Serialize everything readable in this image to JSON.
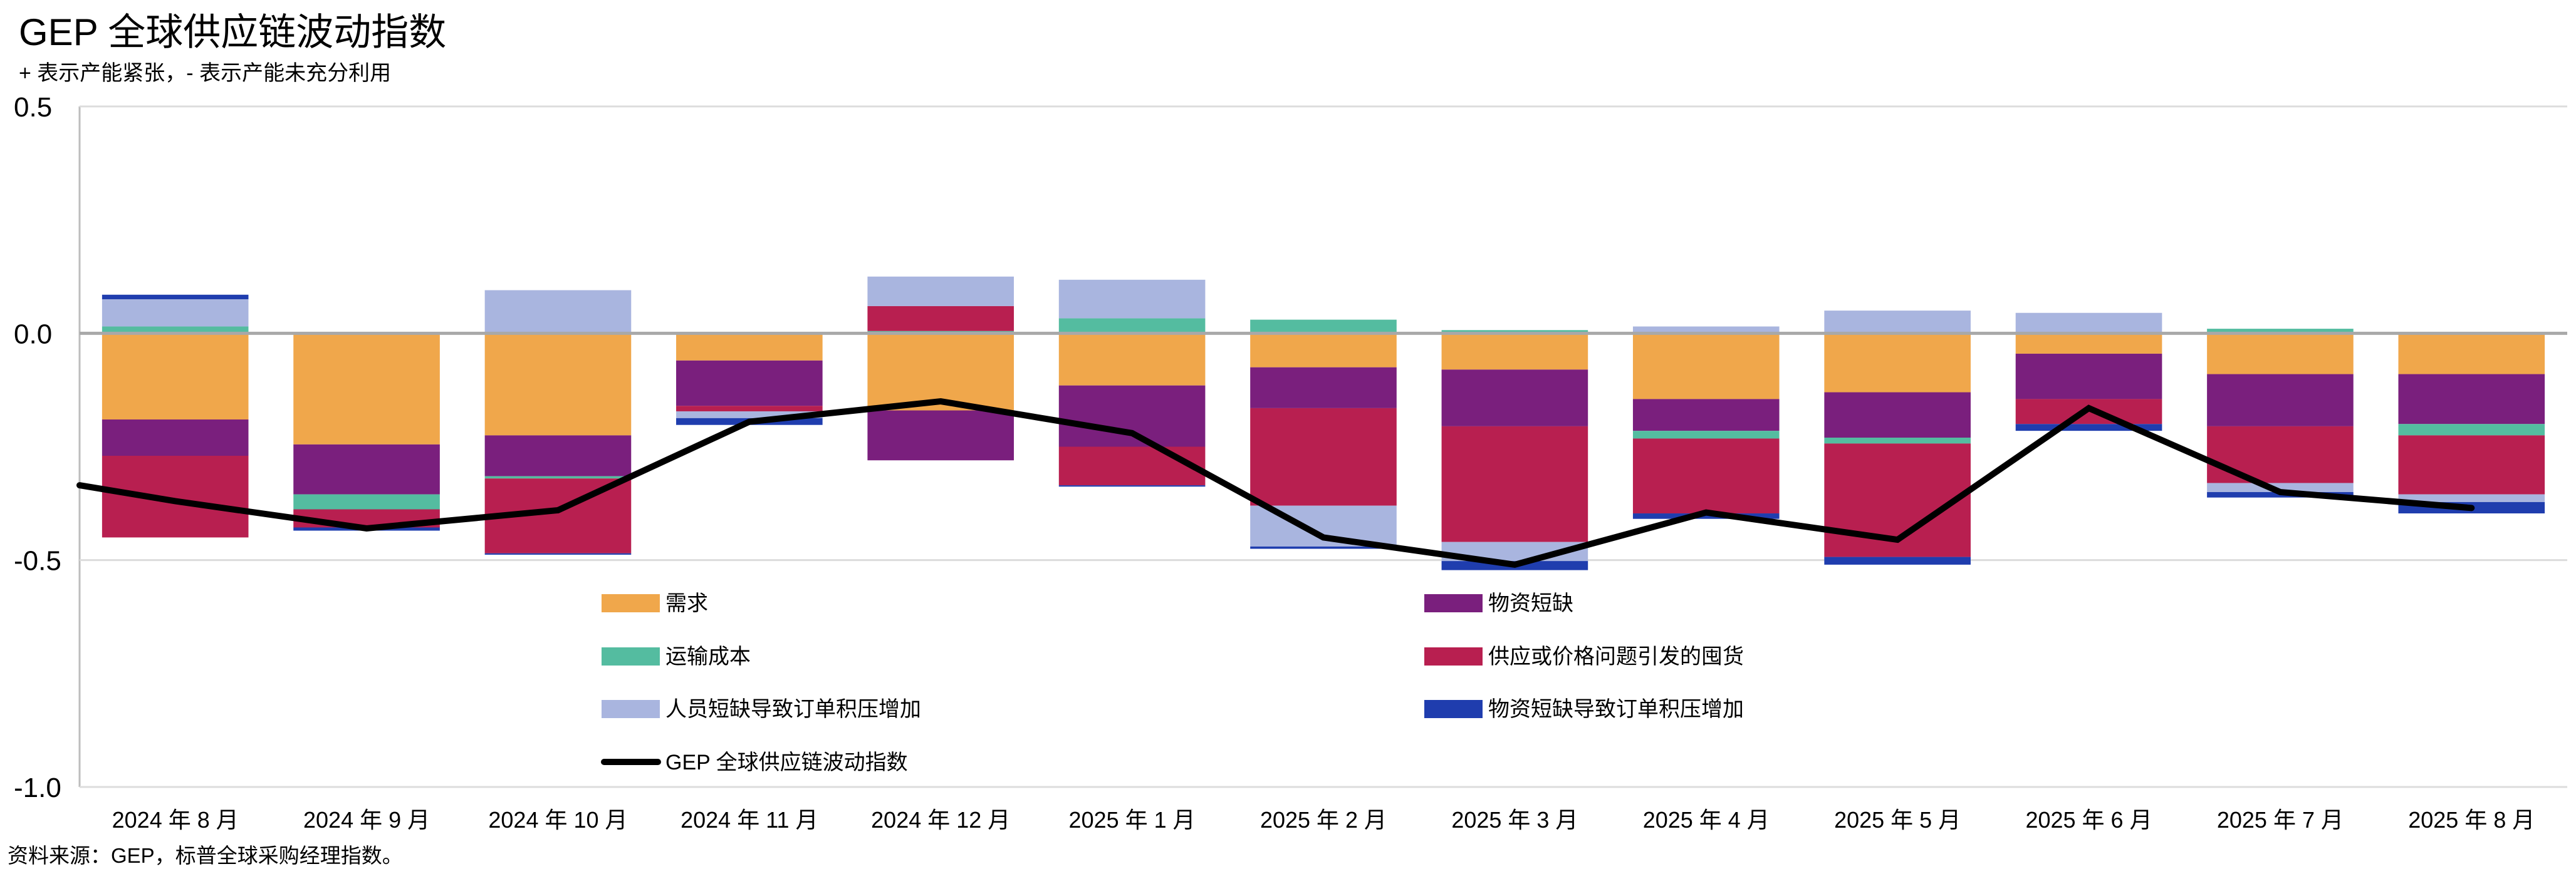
{
  "chart_data": {
    "type": "bar",
    "stacked": true,
    "title": "GEP 全球供应链波动指数",
    "subtitle": "+ 表示产能紧张，- 表示产能未充分利用",
    "source": "资料来源：GEP，标普全球采购经理指数。",
    "xlabel": "",
    "ylabel": "",
    "ylim": [
      -1.0,
      0.5
    ],
    "yticks": [
      0.5,
      0.0,
      -0.5,
      -1.0
    ],
    "ytick_labels": [
      "0.5",
      "0.0",
      "-0.5",
      "-1.0"
    ],
    "grid": "horizontal",
    "legend_position": "bottom-inside",
    "categories": [
      "2024 年 8 月",
      "2024 年 9 月",
      "2024 年 10 月",
      "2024 年 11 月",
      "2024 年 12 月",
      "2025 年 1 月",
      "2025 年 2 月",
      "2025 年 3 月",
      "2025 年 4 月",
      "2025 年 5 月",
      "2025 年 6 月",
      "2025 年 7 月",
      "2025 年 8 月"
    ],
    "series": [
      {
        "name": "需求",
        "color": "#F0A74B",
        "values": [
          -0.19,
          -0.245,
          -0.225,
          -0.06,
          -0.17,
          -0.115,
          -0.075,
          -0.08,
          -0.145,
          -0.13,
          -0.045,
          -0.09,
          -0.09
        ]
      },
      {
        "name": "物资短缺",
        "color": "#7A1F7D",
        "values": [
          -0.08,
          -0.11,
          -0.09,
          -0.1,
          -0.11,
          -0.135,
          -0.09,
          -0.125,
          -0.07,
          -0.1,
          -0.1,
          -0.115,
          -0.11
        ]
      },
      {
        "name": "运输成本",
        "color": "#54BCA0",
        "values": [
          0.015,
          -0.033,
          -0.005,
          0.003,
          0.005,
          0.033,
          0.03,
          0.007,
          -0.017,
          -0.013,
          0.003,
          0.01,
          -0.025
        ]
      },
      {
        "name": "供应或价格问题引发的囤货",
        "color": "#B81F50",
        "values": [
          -0.18,
          -0.04,
          -0.165,
          -0.012,
          0.055,
          -0.085,
          -0.215,
          -0.255,
          -0.165,
          -0.25,
          -0.055,
          -0.125,
          -0.13
        ]
      },
      {
        "name": "人员短缺导致订单积压增加",
        "color": "#A9B5DF",
        "values": [
          0.06,
          0.003,
          0.095,
          -0.015,
          0.065,
          0.085,
          -0.09,
          -0.042,
          0.015,
          0.05,
          0.042,
          -0.02,
          -0.017
        ]
      },
      {
        "name": "物资短缺导致订单积压增加",
        "color": "#1F3DAE",
        "values": [
          0.01,
          -0.007,
          -0.003,
          -0.015,
          0.0,
          -0.003,
          -0.005,
          -0.02,
          -0.012,
          -0.017,
          -0.015,
          -0.012,
          -0.025
        ]
      }
    ],
    "line": {
      "name": "GEP 全球供应链波动指数",
      "color": "#000000",
      "previous_value": -0.3,
      "values": [
        -0.37,
        -0.43,
        -0.39,
        -0.195,
        -0.15,
        -0.22,
        -0.45,
        -0.51,
        -0.395,
        -0.455,
        -0.165,
        -0.35,
        -0.385
      ]
    },
    "legend_order": [
      0,
      1,
      2,
      3,
      4,
      5
    ]
  }
}
